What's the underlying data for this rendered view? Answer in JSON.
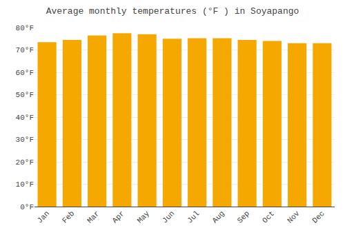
{
  "chart_data": {
    "type": "bar",
    "title": "Average monthly temperatures (°F ) in Soyapango",
    "categories": [
      "Jan",
      "Feb",
      "Mar",
      "Apr",
      "May",
      "Jun",
      "Jul",
      "Aug",
      "Sep",
      "Oct",
      "Nov",
      "Dec"
    ],
    "values": [
      73.5,
      74.5,
      76.5,
      77.5,
      77.0,
      75.0,
      75.2,
      75.2,
      74.5,
      74.0,
      73.0,
      73.0
    ],
    "color": "#F5A800",
    "ylim": [
      0,
      80
    ],
    "yticks": [
      {
        "value": 0,
        "label": "0°F"
      },
      {
        "value": 10,
        "label": "10°F"
      },
      {
        "value": 20,
        "label": "20°F"
      },
      {
        "value": 30,
        "label": "30°F"
      },
      {
        "value": 40,
        "label": "40°F"
      },
      {
        "value": 50,
        "label": "50°F"
      },
      {
        "value": 60,
        "label": "60°F"
      },
      {
        "value": 70,
        "label": "70°F"
      },
      {
        "value": 80,
        "label": "80°F"
      }
    ],
    "grid": true
  }
}
